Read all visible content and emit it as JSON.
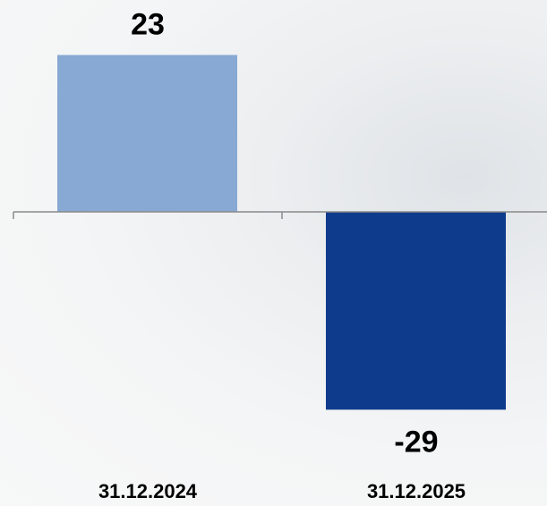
{
  "chart_data": {
    "type": "bar",
    "categories": [
      "31.12.2024",
      "31.12.2025"
    ],
    "values": [
      23,
      -29
    ],
    "colors": [
      "#87a9d3",
      "#0f3b8c"
    ]
  }
}
